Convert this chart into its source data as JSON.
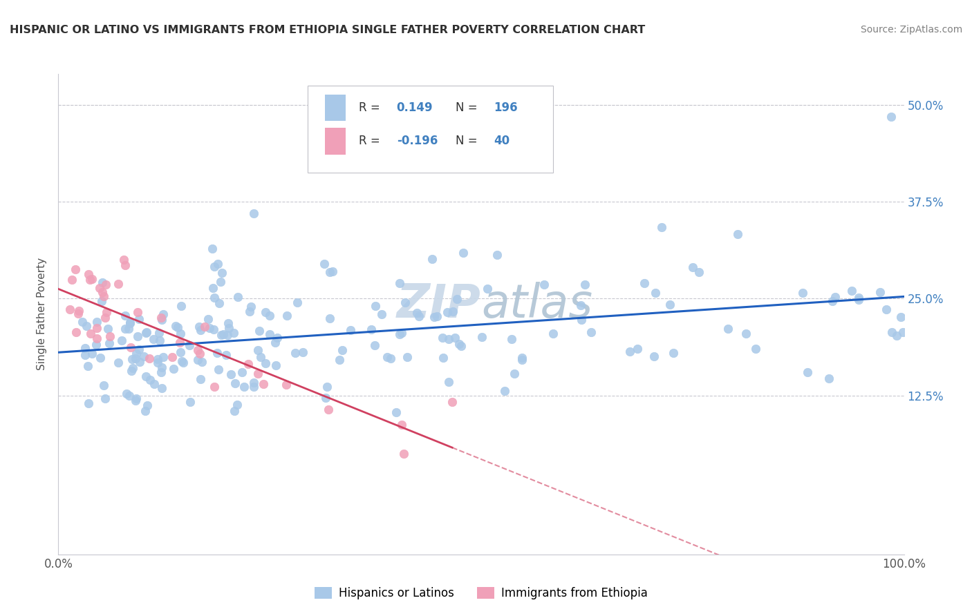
{
  "title": "HISPANIC OR LATINO VS IMMIGRANTS FROM ETHIOPIA SINGLE FATHER POVERTY CORRELATION CHART",
  "source": "Source: ZipAtlas.com",
  "ylabel": "Single Father Poverty",
  "yticks": [
    "12.5%",
    "25.0%",
    "37.5%",
    "50.0%"
  ],
  "ytick_vals": [
    0.125,
    0.25,
    0.375,
    0.5
  ],
  "legend_label1": "Hispanics or Latinos",
  "legend_label2": "Immigrants from Ethiopia",
  "R1": 0.149,
  "N1": 196,
  "R2": -0.196,
  "N2": 40,
  "color1": "#a8c8e8",
  "color2": "#f0a0b8",
  "line_color1": "#2060c0",
  "line_color2": "#d04060",
  "watermark_color": "#c8d8e8",
  "grid_color": "#c8c8d0",
  "title_color": "#303030",
  "source_color": "#808080",
  "ylabel_color": "#505050",
  "tick_label_color": "#4080c0",
  "xlim": [
    0.0,
    1.0
  ],
  "ylim_low": -0.08,
  "ylim_high": 0.54
}
